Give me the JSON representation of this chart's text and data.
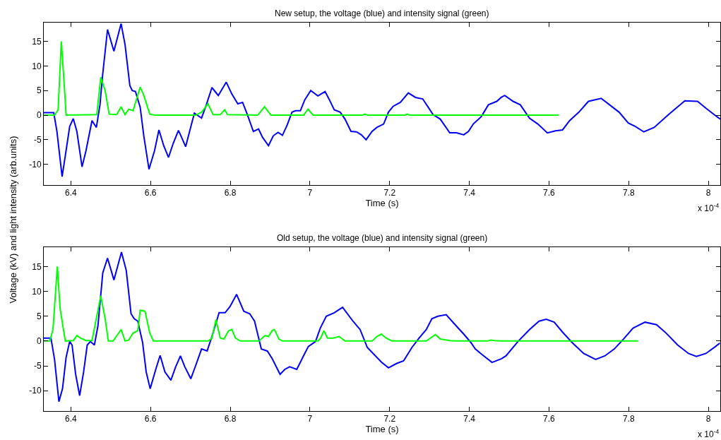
{
  "chart_data": [
    {
      "type": "line",
      "title": "New setup, the voltage (blue) and intensity signal (green)",
      "xlabel": "Time (s)",
      "ylabel": "Voltage (kV) and light intensity (arb.units)",
      "annotations": [
        "x 10$^{-4}$"
      ],
      "xlim": [
        6.332,
        8.03
      ],
      "ylim": [
        -14.2,
        18.8
      ],
      "xticks": [
        {
          "value": 6.4,
          "label": "6.4"
        },
        {
          "value": 6.6,
          "label": "6.6"
        },
        {
          "value": 6.8,
          "label": "6.8"
        },
        7,
        {
          "value": 7.2,
          "label": "7.2"
        },
        {
          "value": 7.4,
          "label": "7.4"
        },
        {
          "value": 7.6,
          "label": "7.6"
        },
        {
          "value": 7.8,
          "label": "7.8"
        },
        8
      ],
      "yticks": [
        -10,
        -5,
        0,
        5,
        10,
        15
      ],
      "series": [
        {
          "color": "#0000ff",
          "x": [
            6.332,
            6.357,
            6.365,
            6.378,
            6.388,
            6.397,
            6.406,
            6.415,
            6.428,
            6.438,
            6.453,
            6.464,
            6.473,
            6.48,
            6.492,
            6.508,
            6.526,
            6.536,
            6.548,
            6.554,
            6.562,
            6.574,
            6.583,
            6.596,
            6.61,
            6.621,
            6.633,
            6.645,
            6.657,
            6.67,
            6.679,
            6.688,
            6.698,
            6.71,
            6.728,
            6.74,
            6.754,
            6.77,
            6.79,
            6.804,
            6.819,
            6.831,
            6.843,
            6.858,
            6.871,
            6.881,
            6.896,
            6.908,
            6.92,
            6.931,
            6.943,
            6.955,
            6.964,
            6.976,
            6.987,
            7.002,
            7.02,
            7.038,
            7.049,
            7.061,
            7.076,
            7.088,
            7.103,
            7.117,
            7.129,
            7.141,
            7.156,
            7.168,
            7.185,
            7.197,
            7.209,
            7.227,
            7.247,
            7.265,
            7.283,
            7.297,
            7.309,
            7.327,
            7.351,
            7.368,
            7.386,
            7.398,
            7.41,
            7.43,
            7.448,
            7.469,
            7.48,
            7.489,
            7.51,
            7.528,
            7.551,
            7.572,
            7.596,
            7.616,
            7.634,
            7.652,
            7.675,
            7.699,
            7.731,
            7.752,
            7.776,
            7.799,
            7.817,
            7.838,
            7.864,
            7.9,
            7.941,
            7.973,
            7.994,
            8.018,
            8.03
          ],
          "values": [
            0.5,
            0.5,
            -3.3,
            -12.5,
            -7.2,
            -2.3,
            -0.7,
            -3.3,
            -10.5,
            -7.2,
            -1.1,
            -2.5,
            2.1,
            8.4,
            17.4,
            13.0,
            18.6,
            14.3,
            6.0,
            5.0,
            4.8,
            1.6,
            -4.2,
            -11.0,
            -7.2,
            -3.0,
            -6.2,
            -8.6,
            -5.7,
            -3.1,
            -4.7,
            -6.4,
            -3.3,
            0.4,
            -0.6,
            2.1,
            5.6,
            4.0,
            6.7,
            4.3,
            2.3,
            2.6,
            0.1,
            -3.3,
            -2.8,
            -4.5,
            -6.2,
            -4.2,
            -3.5,
            -4.1,
            -2.0,
            0.6,
            0.9,
            0.9,
            3.1,
            5.0,
            3.9,
            4.8,
            3.1,
            1.1,
            0.6,
            -0.8,
            -3.3,
            -3.4,
            -4.0,
            -5.0,
            -3.3,
            -2.5,
            -1.8,
            0.6,
            1.8,
            2.6,
            4.5,
            3.6,
            3.3,
            1.6,
            0.1,
            -0.8,
            -3.6,
            -3.6,
            -4.0,
            -3.3,
            -1.8,
            -0.3,
            2.1,
            2.8,
            3.6,
            4.0,
            2.8,
            2.1,
            -0.6,
            -1.8,
            -3.6,
            -3.2,
            -3.0,
            -1.1,
            0.6,
            2.8,
            3.4,
            2.1,
            0.6,
            -1.6,
            -2.3,
            -3.4,
            -2.5,
            0.1,
            2.9,
            2.8,
            1.4,
            -0.1,
            -0.8
          ]
        },
        {
          "color": "#00ff00",
          "x": [
            6.332,
            6.359,
            6.368,
            6.376,
            6.385,
            6.388,
            6.465,
            6.475,
            6.486,
            6.496,
            6.515,
            6.526,
            6.536,
            6.545,
            6.556,
            6.574,
            6.583,
            6.598,
            6.61,
            6.713,
            6.728,
            6.744,
            6.757,
            6.775,
            6.786,
            6.793,
            6.869,
            6.886,
            6.902,
            6.984,
            6.995,
            7.008,
            7.132,
            7.138,
            7.144,
            7.238,
            7.244,
            7.25,
            7.624
          ],
          "values": [
            0,
            0,
            1.1,
            15.0,
            4.0,
            0,
            0.1,
            7.7,
            5.0,
            0.2,
            0.1,
            1.7,
            0.1,
            1.2,
            0.9,
            5.7,
            4.0,
            0.2,
            0,
            0,
            0.6,
            2.3,
            0.1,
            0.1,
            1.1,
            0.1,
            0,
            1.7,
            0,
            0,
            1.2,
            0,
            0,
            0.2,
            0,
            0,
            0.2,
            0,
            0
          ]
        }
      ]
    },
    {
      "type": "line",
      "title": "Old setup, the voltage (blue) and intensity signal (green)",
      "xlabel": "Time (s)",
      "annotations": [
        "x 10$^{-4}$"
      ],
      "xlim": [
        6.332,
        8.03
      ],
      "ylim": [
        -14.1,
        18.9
      ],
      "xticks": [
        {
          "value": 6.4,
          "label": "6.4"
        },
        {
          "value": 6.6,
          "label": "6.6"
        },
        {
          "value": 6.8,
          "label": "6.8"
        },
        7,
        {
          "value": 7.2,
          "label": "7.2"
        },
        {
          "value": 7.4,
          "label": "7.4"
        },
        {
          "value": 7.6,
          "label": "7.6"
        },
        {
          "value": 7.8,
          "label": "7.8"
        },
        8
      ],
      "yticks": [
        -10,
        -5,
        0,
        5,
        10,
        15
      ],
      "series": [
        {
          "color": "#0000ff",
          "x": [
            6.332,
            6.35,
            6.359,
            6.37,
            6.379,
            6.388,
            6.397,
            6.403,
            6.412,
            6.422,
            6.432,
            6.441,
            6.449,
            6.459,
            6.468,
            6.48,
            6.492,
            6.508,
            6.527,
            6.539,
            6.551,
            6.559,
            6.568,
            6.58,
            6.589,
            6.599,
            6.613,
            6.624,
            6.636,
            6.651,
            6.663,
            6.675,
            6.686,
            6.701,
            6.713,
            6.728,
            6.742,
            6.754,
            6.772,
            6.787,
            6.799,
            6.816,
            6.834,
            6.849,
            6.861,
            6.878,
            6.893,
            6.905,
            6.925,
            6.937,
            6.949,
            6.967,
            6.982,
            6.996,
            7.014,
            7.026,
            7.041,
            7.061,
            7.082,
            7.108,
            7.126,
            7.144,
            7.162,
            7.179,
            7.197,
            7.218,
            7.235,
            7.256,
            7.274,
            7.292,
            7.306,
            7.321,
            7.342,
            7.362,
            7.386,
            7.404,
            7.415,
            7.433,
            7.457,
            7.48,
            7.492,
            7.522,
            7.551,
            7.575,
            7.593,
            7.613,
            7.634,
            7.658,
            7.687,
            7.717,
            7.74,
            7.764,
            7.787,
            7.811,
            7.841,
            7.87,
            7.894,
            7.923,
            7.95,
            7.97,
            7.994,
            8.018,
            8.029
          ],
          "values": [
            0.6,
            0.6,
            -3.7,
            -12.2,
            -9.6,
            -3.3,
            -0.1,
            -0.8,
            -6.7,
            -11.0,
            -6.2,
            -0.8,
            -0.1,
            -0.8,
            3.1,
            13.7,
            16.7,
            12.3,
            17.9,
            14.2,
            5.5,
            4.5,
            4.0,
            -0.3,
            -6.2,
            -9.6,
            -5.7,
            -2.9,
            -6.2,
            -7.9,
            -5.2,
            -3.0,
            -5.2,
            -7.6,
            -5.0,
            -1.6,
            -2.0,
            0.9,
            5.7,
            5.7,
            6.9,
            9.4,
            6.0,
            5.5,
            4.0,
            -1.6,
            -2.0,
            -3.5,
            -6.7,
            -5.7,
            -5.2,
            -5.7,
            -3.3,
            -1.1,
            -0.1,
            2.6,
            5.0,
            5.7,
            6.8,
            4.0,
            2.3,
            -1.3,
            -2.8,
            -4.2,
            -5.4,
            -4.5,
            -4.0,
            -1.3,
            0.6,
            2.3,
            4.5,
            5.0,
            5.3,
            3.5,
            1.4,
            -0.3,
            -1.6,
            -2.8,
            -4.3,
            -3.6,
            -3.0,
            -0.1,
            2.3,
            4.0,
            4.4,
            3.8,
            1.8,
            -0.3,
            -2.5,
            -3.7,
            -3.0,
            -1.6,
            0.4,
            2.6,
            3.8,
            3.3,
            1.6,
            -0.8,
            -2.5,
            -3.1,
            -2.5,
            -1.1,
            -0.4
          ]
        },
        {
          "color": "#00ff00",
          "x": [
            6.332,
            6.347,
            6.355,
            6.366,
            6.373,
            6.386,
            6.406,
            6.415,
            6.424,
            6.438,
            6.453,
            6.475,
            6.486,
            6.494,
            6.506,
            6.526,
            6.536,
            6.545,
            6.556,
            6.568,
            6.574,
            6.586,
            6.598,
            6.607,
            6.745,
            6.754,
            6.764,
            6.775,
            6.784,
            6.796,
            6.804,
            6.813,
            6.825,
            6.872,
            6.887,
            6.896,
            6.905,
            6.911,
            6.922,
            6.931,
            7.02,
            7.027,
            7.035,
            7.044,
            7.058,
            7.073,
            7.088,
            7.156,
            7.168,
            7.179,
            7.191,
            7.206,
            7.292,
            7.315,
            7.327,
            7.351,
            7.368,
            7.445,
            7.454,
            7.463,
            7.48,
            7.824
          ],
          "values": [
            0,
            0,
            2.3,
            15.0,
            6.5,
            0,
            0.1,
            1.1,
            0.6,
            0.1,
            0.1,
            9.1,
            4.5,
            0,
            0,
            2.3,
            0,
            0.2,
            1.6,
            2.1,
            6.2,
            6.0,
            1.6,
            0,
            0,
            0.6,
            4.3,
            0.6,
            0.4,
            2.1,
            2.3,
            0.6,
            0,
            0,
            1.1,
            0.9,
            2.1,
            2.3,
            0.4,
            0,
            0,
            0.6,
            2.1,
            0.6,
            0.6,
            0.9,
            0,
            0,
            0.9,
            1.4,
            0.6,
            0,
            0,
            1.3,
            0.4,
            0.1,
            0,
            0,
            0.2,
            0.1,
            0,
            0
          ]
        }
      ]
    }
  ]
}
